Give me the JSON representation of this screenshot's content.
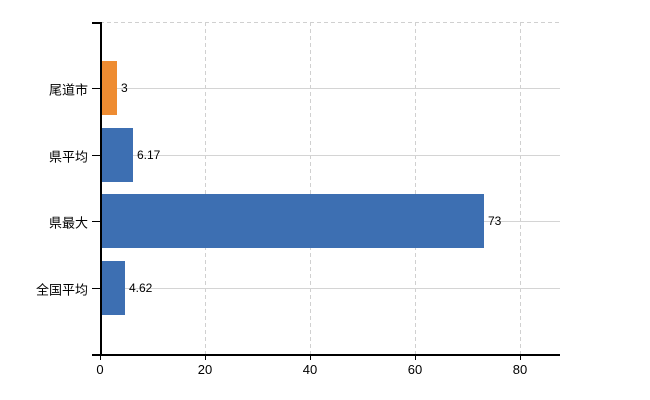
{
  "chart_data": {
    "type": "bar",
    "orientation": "horizontal",
    "title": "",
    "categories": [
      "尾道市",
      "県平均",
      "県最大",
      "全国平均"
    ],
    "values": [
      3,
      6.17,
      73,
      4.62
    ],
    "value_labels": [
      "3",
      "6.17",
      "73",
      "4.62"
    ],
    "bar_colors": [
      "#ee8c32",
      "#3d6fb2",
      "#3d6fb2",
      "#3d6fb2"
    ],
    "x_tick_values": [
      0,
      20,
      40,
      60,
      80
    ],
    "x_tick_labels": [
      "0",
      "20",
      "40",
      "60",
      "80"
    ],
    "xlim": [
      0,
      88
    ],
    "grid": true,
    "legend": false
  },
  "colors": {
    "bar_default": "#3d6fb2",
    "bar_highlight": "#ee8c32",
    "gridline": "#d0d0d0",
    "axis": "#000000",
    "text": "#000000",
    "background": "#ffffff"
  }
}
